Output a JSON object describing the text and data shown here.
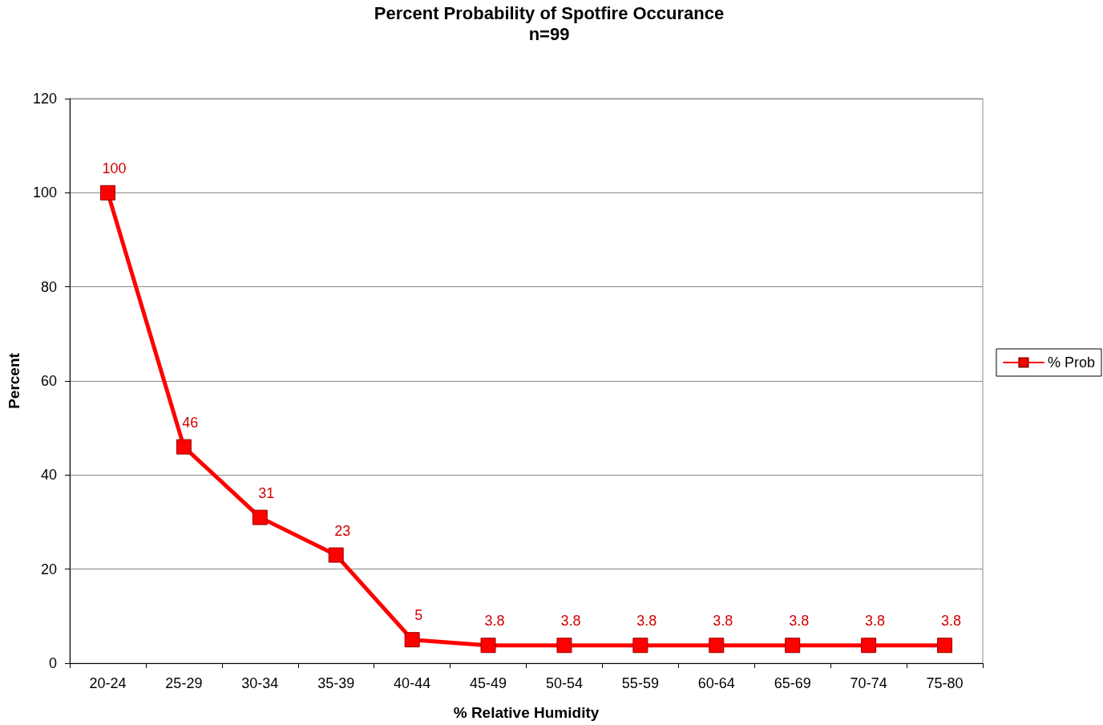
{
  "chart_data": {
    "type": "line",
    "title": "Percent Probability of Spotfire Occurance",
    "subtitle": "n=99",
    "xlabel": "% Relative Humidity",
    "ylabel": "Percent",
    "categories": [
      "20-24",
      "25-29",
      "30-34",
      "35-39",
      "40-44",
      "45-49",
      "50-54",
      "55-59",
      "60-64",
      "65-69",
      "70-74",
      "75-80"
    ],
    "series": [
      {
        "name": "% Prob",
        "color": "#ff0000",
        "values": [
          100,
          46,
          31,
          23,
          5,
          3.8,
          3.8,
          3.8,
          3.8,
          3.8,
          3.8,
          3.8
        ]
      }
    ],
    "ylim": [
      0,
      120
    ],
    "yticks": [
      0,
      20,
      40,
      60,
      80,
      100,
      120
    ],
    "grid": "y",
    "legend": "right",
    "marker": "square",
    "line_style": "solid",
    "data_labels": true
  }
}
